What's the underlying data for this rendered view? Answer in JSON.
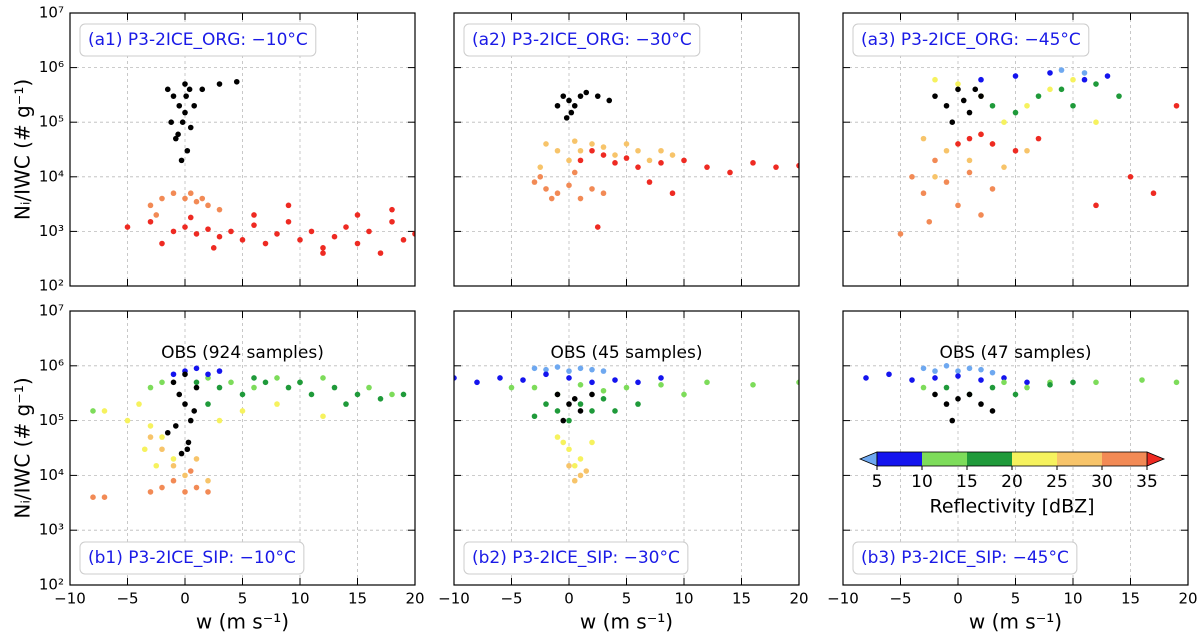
{
  "axes": {
    "xlim": [
      -10,
      20
    ],
    "xticks": [
      {
        "value": -10,
        "label": "−10"
      },
      {
        "value": -5,
        "label": "−5"
      },
      0,
      5,
      10,
      15,
      20
    ],
    "ylim": [
      100,
      10000000
    ],
    "ylog": true,
    "grid": true,
    "yticks": [
      {
        "value": 100,
        "label": "10²"
      },
      {
        "value": 1000,
        "label": "10³"
      },
      {
        "value": 10000,
        "label": "10⁴"
      },
      {
        "value": 100000,
        "label": "10⁵"
      },
      {
        "value": 1000000,
        "label": "10⁶"
      },
      {
        "value": 10000000,
        "label": "10⁷"
      }
    ],
    "xlabel": "w (m s⁻¹)",
    "ylabel": "Nᵢ/IWC (# g⁻¹)"
  },
  "colorbar": {
    "ticks": [
      5,
      10,
      15,
      20,
      25,
      30,
      35
    ],
    "colors": [
      "#6ea8f0",
      "#1414ee",
      "#7ddc5a",
      "#1f9a3a",
      "#f6f25e",
      "#f7c46a",
      "#f28a55",
      "#ee2a22"
    ],
    "label": "Reflectivity [dBZ]"
  },
  "chart_data": [
    {
      "type": "scatter",
      "label": "(a1) P3-2ICE_ORG: −10°C",
      "series": [
        {
          "color": "#ee2a22",
          "x": [
            -5,
            -3,
            -1,
            0,
            1,
            2,
            3,
            4,
            5,
            6,
            7,
            8,
            9,
            10,
            11,
            12,
            13,
            14,
            15,
            16,
            17,
            18,
            19,
            20,
            -2,
            0.5,
            2.5,
            6,
            9,
            12,
            15,
            18
          ],
          "y": [
            1200,
            1500,
            1000,
            1200,
            900,
            1100,
            800,
            1000,
            700,
            1300,
            600,
            900,
            1500,
            700,
            1000,
            500,
            800,
            1200,
            600,
            1000,
            400,
            1500,
            700,
            900,
            600,
            1800,
            500,
            2000,
            3000,
            400,
            2000,
            2500
          ]
        },
        {
          "color": "#f28a55",
          "x": [
            -3,
            -2,
            -1,
            0,
            1,
            2,
            3,
            -2.5,
            0.5,
            1.5
          ],
          "y": [
            3000,
            4000,
            5000,
            4000,
            3500,
            3000,
            2500,
            2000,
            5000,
            4000
          ]
        },
        {
          "color": "#000000",
          "x": [
            -1,
            -0.5,
            0,
            0.5,
            -1.5,
            -0.8,
            0.2,
            -0.3,
            0.8,
            -1.2,
            0,
            -0.6,
            0.4,
            1.5,
            3,
            4.5,
            -0.2,
            0.1
          ],
          "y": [
            300000,
            200000,
            150000,
            80000,
            400000,
            50000,
            30000,
            20000,
            200000,
            100000,
            500000,
            60000,
            400000,
            400000,
            500000,
            550000,
            100000,
            300000
          ]
        }
      ]
    },
    {
      "type": "scatter",
      "label": "(a2) P3-2ICE_ORG: −30°C",
      "series": [
        {
          "color": "#f7c46a",
          "x": [
            -2,
            -1,
            0,
            1,
            2,
            3,
            4,
            5,
            6,
            7,
            8,
            9,
            -2.5,
            0.5
          ],
          "y": [
            40000,
            30000,
            20000,
            30000,
            40000,
            35000,
            25000,
            40000,
            30000,
            20000,
            30000,
            25000,
            15000,
            45000
          ]
        },
        {
          "color": "#f28a55",
          "x": [
            -3,
            -2,
            -1,
            0,
            1,
            -2.5,
            0.5,
            -1.5,
            2,
            3
          ],
          "y": [
            8000,
            6000,
            5000,
            7000,
            4000,
            10000,
            12000,
            4000,
            6000,
            5000
          ]
        },
        {
          "color": "#ee2a22",
          "x": [
            1,
            2,
            3,
            4,
            5,
            6,
            8,
            10,
            12,
            14,
            16,
            18,
            20,
            7,
            9,
            2.5
          ],
          "y": [
            20000,
            30000,
            25000,
            18000,
            22000,
            15000,
            18000,
            20000,
            15000,
            12000,
            18000,
            15000,
            16000,
            8000,
            5000,
            1200
          ]
        },
        {
          "color": "#000000",
          "x": [
            -0.5,
            0,
            0.5,
            1,
            -1,
            1.5,
            2.5,
            3.5,
            0.2,
            -0.2
          ],
          "y": [
            300000,
            250000,
            200000,
            300000,
            200000,
            350000,
            300000,
            250000,
            150000,
            120000
          ]
        }
      ]
    },
    {
      "type": "scatter",
      "label": "(a3) P3-2ICE_ORG: −45°C",
      "series": [
        {
          "color": "#f28a55",
          "x": [
            -4,
            -3,
            -2,
            -1,
            0,
            1,
            2,
            -5,
            3,
            -2.5
          ],
          "y": [
            10000,
            5000,
            20000,
            8000,
            3000,
            12000,
            2000,
            900,
            6000,
            1500
          ]
        },
        {
          "color": "#f7c46a",
          "x": [
            -3,
            -1,
            0,
            1,
            2,
            3,
            4,
            -2,
            6
          ],
          "y": [
            50000,
            30000,
            40000,
            20000,
            60000,
            40000,
            15000,
            10000,
            30000
          ]
        },
        {
          "color": "#ee2a22",
          "x": [
            0,
            1,
            2,
            3,
            5,
            7,
            12,
            15,
            17,
            19
          ],
          "y": [
            40000,
            50000,
            60000,
            40000,
            30000,
            50000,
            3000,
            10000,
            5000,
            200000
          ]
        },
        {
          "color": "#f6f25e",
          "x": [
            -2,
            0,
            2,
            4,
            6,
            8,
            10,
            12
          ],
          "y": [
            600000,
            500000,
            300000,
            100000,
            200000,
            400000,
            600000,
            100000
          ]
        },
        {
          "color": "#1f9a3a",
          "x": [
            3,
            5,
            7,
            9,
            10,
            12,
            14
          ],
          "y": [
            200000,
            150000,
            300000,
            400000,
            200000,
            500000,
            300000
          ]
        },
        {
          "color": "#1414ee",
          "x": [
            2,
            5,
            8,
            11,
            13
          ],
          "y": [
            600000,
            700000,
            800000,
            600000,
            700000
          ]
        },
        {
          "color": "#6ea8f0",
          "x": [
            9,
            11
          ],
          "y": [
            900000,
            800000
          ]
        },
        {
          "color": "#000000",
          "x": [
            -2,
            -1,
            0,
            1,
            2,
            0.5,
            -0.5,
            1.5
          ],
          "y": [
            300000,
            200000,
            400000,
            150000,
            300000,
            250000,
            100000,
            400000
          ]
        }
      ]
    },
    {
      "type": "scatter",
      "label": "(b1) P3-2ICE_SIP: −10°C",
      "note": "OBS (924 samples)",
      "series": [
        {
          "color": "#7ddc5a",
          "x": [
            -3,
            -2,
            2,
            4,
            6,
            8,
            10,
            12,
            16,
            18,
            -8
          ],
          "y": [
            400000,
            500000,
            600000,
            500000,
            400000,
            600000,
            500000,
            600000,
            400000,
            300000,
            150000
          ]
        },
        {
          "color": "#1f9a3a",
          "x": [
            1,
            3,
            5,
            7,
            9,
            11,
            13,
            15,
            17,
            19,
            2,
            6,
            10,
            14
          ],
          "y": [
            500000,
            400000,
            300000,
            500000,
            400000,
            300000,
            400000,
            300000,
            250000,
            300000,
            200000,
            600000,
            500000,
            200000
          ]
        },
        {
          "color": "#f6f25e",
          "x": [
            -5,
            -4,
            -3,
            -2,
            -1,
            3,
            5,
            8,
            12,
            -7,
            -3.5,
            -2.5
          ],
          "y": [
            100000,
            200000,
            80000,
            50000,
            20000,
            100000,
            150000,
            200000,
            120000,
            150000,
            30000,
            15000
          ]
        },
        {
          "color": "#f7c46a",
          "x": [
            -2,
            -1,
            0,
            1,
            -3,
            2
          ],
          "y": [
            30000,
            15000,
            10000,
            20000,
            50000,
            8000
          ]
        },
        {
          "color": "#f28a55",
          "x": [
            -3,
            -2,
            -1,
            0,
            1,
            2,
            -8,
            -7,
            0.5
          ],
          "y": [
            5000,
            6000,
            8000,
            5000,
            6000,
            5000,
            4000,
            4000,
            12000
          ]
        },
        {
          "color": "#1414ee",
          "x": [
            0,
            1,
            2,
            3,
            -1
          ],
          "y": [
            800000,
            900000,
            700000,
            800000,
            700000
          ]
        },
        {
          "color": "#000000",
          "x": [
            -1,
            -0.5,
            0,
            0.5,
            -1.5,
            0.3,
            -0.3,
            0.8,
            0,
            -0.8,
            0.2,
            1
          ],
          "y": [
            500000,
            300000,
            200000,
            100000,
            60000,
            40000,
            25000,
            150000,
            700000,
            80000,
            30000,
            400000
          ]
        }
      ]
    },
    {
      "type": "scatter",
      "label": "(b2) P3-2ICE_SIP: −30°C",
      "note": "OBS (45 samples)",
      "series": [
        {
          "color": "#6ea8f0",
          "x": [
            -3,
            -2,
            -1,
            0,
            1,
            2,
            3
          ],
          "y": [
            900000,
            850000,
            950000,
            800000,
            900000,
            850000,
            800000
          ]
        },
        {
          "color": "#1414ee",
          "x": [
            -10,
            -8,
            -6,
            -4,
            -2,
            0,
            2,
            4,
            6,
            8
          ],
          "y": [
            600000,
            500000,
            600000,
            550000,
            700000,
            600000,
            500000,
            550000,
            500000,
            600000
          ]
        },
        {
          "color": "#7ddc5a",
          "x": [
            -3,
            -1,
            1,
            3,
            5,
            8,
            12,
            16,
            20,
            -5,
            10
          ],
          "y": [
            400000,
            300000,
            450000,
            350000,
            400000,
            450000,
            500000,
            450000,
            500000,
            400000,
            300000
          ]
        },
        {
          "color": "#1f9a3a",
          "x": [
            -2,
            -1,
            0,
            1,
            2,
            3,
            4,
            6,
            -3
          ],
          "y": [
            200000,
            150000,
            100000,
            200000,
            150000,
            250000,
            150000,
            200000,
            120000
          ]
        },
        {
          "color": "#f6f25e",
          "x": [
            -1,
            0,
            1,
            2,
            0.5,
            -0.5
          ],
          "y": [
            50000,
            30000,
            20000,
            40000,
            15000,
            40000
          ]
        },
        {
          "color": "#f7c46a",
          "x": [
            0,
            1,
            0.5,
            1.5
          ],
          "y": [
            15000,
            10000,
            8000,
            12000
          ]
        },
        {
          "color": "#000000",
          "x": [
            -1,
            0,
            0.5,
            1,
            2,
            -0.5
          ],
          "y": [
            300000,
            200000,
            250000,
            150000,
            300000,
            100000
          ]
        }
      ]
    },
    {
      "type": "scatter",
      "label": "(b3) P3-2ICE_SIP: −45°C",
      "note": "OBS (47 samples)",
      "series": [
        {
          "color": "#6ea8f0",
          "x": [
            -3,
            -1,
            0,
            1,
            2,
            3,
            -2
          ],
          "y": [
            900000,
            1000000,
            800000,
            900000,
            850000,
            750000,
            800000
          ]
        },
        {
          "color": "#1414ee",
          "x": [
            -8,
            -6,
            -4,
            -2,
            0,
            2,
            4,
            6
          ],
          "y": [
            600000,
            700000,
            550000,
            600000,
            650000,
            550000,
            600000,
            500000
          ]
        },
        {
          "color": "#7ddc5a",
          "x": [
            4,
            6,
            8,
            12,
            16,
            19,
            -3
          ],
          "y": [
            500000,
            400000,
            500000,
            500000,
            550000,
            500000,
            400000
          ]
        },
        {
          "color": "#1f9a3a",
          "x": [
            -1,
            1,
            3,
            5,
            8,
            10
          ],
          "y": [
            400000,
            300000,
            400000,
            300000,
            450000,
            500000
          ]
        },
        {
          "color": "#000000",
          "x": [
            -2,
            -1,
            0,
            1,
            2,
            3,
            -0.5
          ],
          "y": [
            300000,
            200000,
            250000,
            300000,
            200000,
            150000,
            100000
          ]
        }
      ]
    }
  ]
}
